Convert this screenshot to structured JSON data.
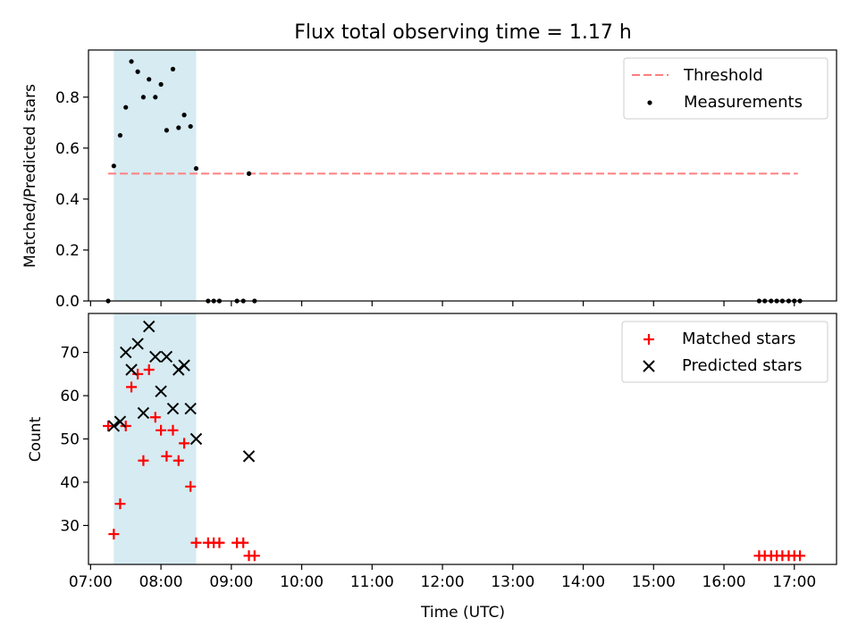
{
  "chart_data": [
    {
      "type": "scatter",
      "title": "Flux total observing time = 1.17 h",
      "xlabel": "",
      "ylabel": "Matched/Predicted stars",
      "xlim": [
        6.97,
        17.6
      ],
      "ylim": [
        0.0,
        0.985
      ],
      "yticks": [
        0.0,
        0.2,
        0.4,
        0.6,
        0.8
      ],
      "ytick_labels": [
        "0.0",
        "0.2",
        "0.4",
        "0.6",
        "0.8"
      ],
      "xticks": [
        7,
        8,
        9,
        10,
        11,
        12,
        13,
        14,
        15,
        16,
        17
      ],
      "shaded_span": [
        7.33,
        8.5
      ],
      "shade_color": "#add8e6",
      "threshold": {
        "name": "Threshold",
        "value": 0.5,
        "x": [
          7.25,
          17.05
        ],
        "color": "#ff7f7f"
      },
      "legend_position": "top-right",
      "series": [
        {
          "name": "Measurements",
          "color": "#000000",
          "marker": "dot",
          "points": [
            [
              7.25,
              0.0
            ],
            [
              7.33,
              0.53
            ],
            [
              7.42,
              0.65
            ],
            [
              7.5,
              0.76
            ],
            [
              7.58,
              0.94
            ],
            [
              7.67,
              0.9
            ],
            [
              7.75,
              0.8
            ],
            [
              7.83,
              0.87
            ],
            [
              7.92,
              0.8
            ],
            [
              8.0,
              0.85
            ],
            [
              8.08,
              0.67
            ],
            [
              8.17,
              0.91
            ],
            [
              8.25,
              0.68
            ],
            [
              8.33,
              0.73
            ],
            [
              8.42,
              0.685
            ],
            [
              8.5,
              0.52
            ],
            [
              8.67,
              0.0
            ],
            [
              8.75,
              0.0
            ],
            [
              8.83,
              0.0
            ],
            [
              9.08,
              0.0
            ],
            [
              9.17,
              0.0
            ],
            [
              9.25,
              0.5
            ],
            [
              9.33,
              0.0
            ],
            [
              16.5,
              0.0
            ],
            [
              16.58,
              0.0
            ],
            [
              16.67,
              0.0
            ],
            [
              16.75,
              0.0
            ],
            [
              16.83,
              0.0
            ],
            [
              16.92,
              0.0
            ],
            [
              17.0,
              0.0
            ],
            [
              17.08,
              0.0
            ]
          ]
        }
      ]
    },
    {
      "type": "scatter",
      "title": "",
      "xlabel": "Time (UTC)",
      "ylabel": "Count",
      "xlim": [
        6.97,
        17.6
      ],
      "ylim": [
        21,
        79
      ],
      "yticks": [
        30,
        40,
        50,
        60,
        70
      ],
      "ytick_labels": [
        "30",
        "40",
        "50",
        "60",
        "70"
      ],
      "xticks": [
        7,
        8,
        9,
        10,
        11,
        12,
        13,
        14,
        15,
        16,
        17
      ],
      "xtick_labels": [
        "07:00",
        "08:00",
        "09:00",
        "10:00",
        "11:00",
        "12:00",
        "13:00",
        "14:00",
        "15:00",
        "16:00",
        "17:00"
      ],
      "shaded_span": [
        7.33,
        8.5
      ],
      "shade_color": "#add8e6",
      "legend_position": "top-right",
      "series": [
        {
          "name": "Matched stars",
          "color": "#ff0000",
          "marker": "plus",
          "points": [
            [
              7.25,
              53
            ],
            [
              7.33,
              28
            ],
            [
              7.42,
              35
            ],
            [
              7.5,
              53
            ],
            [
              7.58,
              62
            ],
            [
              7.67,
              65
            ],
            [
              7.75,
              45
            ],
            [
              7.83,
              66
            ],
            [
              7.92,
              55
            ],
            [
              8.0,
              52
            ],
            [
              8.08,
              46
            ],
            [
              8.17,
              52
            ],
            [
              8.25,
              45
            ],
            [
              8.33,
              49
            ],
            [
              8.42,
              39
            ],
            [
              8.5,
              26
            ],
            [
              8.67,
              26
            ],
            [
              8.75,
              26
            ],
            [
              8.83,
              26
            ],
            [
              9.08,
              26
            ],
            [
              9.17,
              26
            ],
            [
              9.25,
              23
            ],
            [
              9.33,
              23
            ],
            [
              16.5,
              23
            ],
            [
              16.58,
              23
            ],
            [
              16.67,
              23
            ],
            [
              16.75,
              23
            ],
            [
              16.83,
              23
            ],
            [
              16.92,
              23
            ],
            [
              17.0,
              23
            ],
            [
              17.08,
              23
            ]
          ]
        },
        {
          "name": "Predicted stars",
          "color": "#000000",
          "marker": "x",
          "points": [
            [
              7.33,
              53
            ],
            [
              7.42,
              54
            ],
            [
              7.5,
              70
            ],
            [
              7.58,
              66
            ],
            [
              7.67,
              72
            ],
            [
              7.75,
              56
            ],
            [
              7.83,
              76
            ],
            [
              7.92,
              69
            ],
            [
              8.0,
              61
            ],
            [
              8.08,
              69
            ],
            [
              8.17,
              57
            ],
            [
              8.25,
              66
            ],
            [
              8.33,
              67
            ],
            [
              8.42,
              57
            ],
            [
              8.5,
              50
            ],
            [
              9.25,
              46
            ]
          ]
        }
      ]
    }
  ]
}
